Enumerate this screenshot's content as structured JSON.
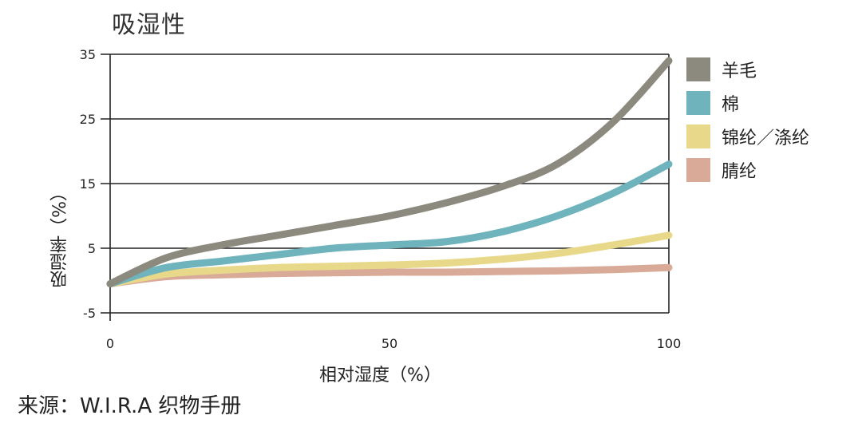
{
  "chart_data": {
    "type": "line",
    "title": "吸湿性",
    "xlabel": "相对湿度（%）",
    "ylabel": "吸湿率（%）",
    "source": "来源：W.I.R.A 织物手册",
    "xlim": [
      0,
      100
    ],
    "ylim": [
      -5,
      35
    ],
    "x_ticks": [
      "0",
      "50",
      "100"
    ],
    "y_ticks": [
      "35",
      "25",
      "15",
      "5",
      "-5"
    ],
    "legend_position": "right",
    "x": [
      0,
      10,
      20,
      30,
      40,
      50,
      60,
      70,
      80,
      90,
      100
    ],
    "series": [
      {
        "name": "羊毛",
        "color": "#8c8a7e",
        "values": [
          -0.5,
          3.5,
          5.5,
          7.0,
          8.5,
          10.0,
          12.0,
          14.5,
          18.0,
          24.5,
          34.0
        ]
      },
      {
        "name": "棉",
        "color": "#6fb3bd",
        "values": [
          -0.5,
          2.0,
          3.0,
          4.0,
          5.0,
          5.5,
          6.0,
          7.5,
          10.0,
          13.5,
          18.0
        ]
      },
      {
        "name": "锦纶／涤纶",
        "color": "#e8d98a",
        "values": [
          -0.5,
          1.0,
          1.6,
          2.0,
          2.2,
          2.4,
          2.7,
          3.3,
          4.2,
          5.5,
          7.0
        ]
      },
      {
        "name": "腈纶",
        "color": "#d9aa98",
        "values": [
          -0.5,
          0.6,
          0.9,
          1.1,
          1.2,
          1.3,
          1.3,
          1.4,
          1.5,
          1.7,
          2.0
        ]
      }
    ]
  }
}
